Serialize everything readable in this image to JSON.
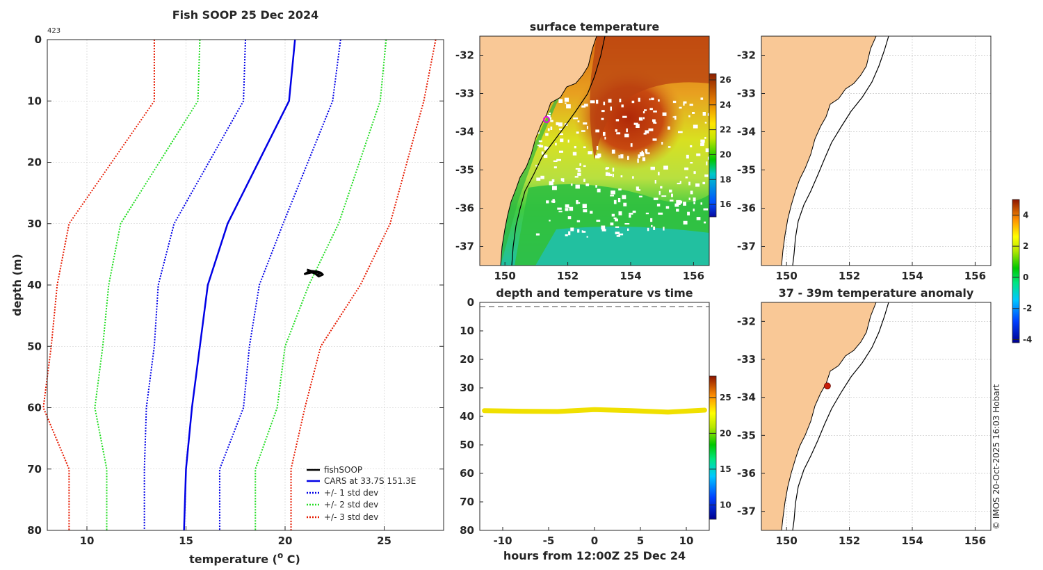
{
  "colors": {
    "land": "#f9c896",
    "cars": "#0000e6",
    "std1": "#0000e6",
    "std2": "#22dd22",
    "std3": "#e61a00",
    "fishsoop": "#000000",
    "marker": "#c81e0a",
    "grid": "#c8c8c8"
  },
  "profile": {
    "title": "Fish SOOP 25 Dec 2024",
    "id_label": "423",
    "xlabel": "temperature (",
    "xlabel_sup": "o",
    "xlabel_end": " C)",
    "ylabel": "depth (m)",
    "legend": {
      "fishsoop": "fishSOOP",
      "cars": "CARS at 33.7S 151.3E",
      "std1": "+/- 1 std dev",
      "std2": "+/- 2 std dev",
      "std3": "+/- 3 std dev"
    }
  },
  "sst": {
    "title": "surface temperature"
  },
  "timeplot": {
    "title": "depth and temperature vs time",
    "xlabel": "hours from 12:00Z 25 Dec 24"
  },
  "anomaly": {
    "title": "37 - 39m temperature anomaly"
  },
  "credit": "© IMOS 20-Oct-2025 16:03 Hobart",
  "chart_data": [
    {
      "type": "line",
      "name": "temperature profile",
      "title": "Fish SOOP 25 Dec 2024",
      "xlabel": "temperature (o C)",
      "ylabel": "depth (m)",
      "xlim": [
        8,
        28
      ],
      "ylim": [
        80,
        0
      ],
      "xticks": [
        10,
        15,
        20,
        25
      ],
      "yticks": [
        0,
        10,
        20,
        30,
        40,
        50,
        60,
        70,
        80
      ],
      "depths": [
        0,
        10,
        30,
        40,
        50,
        60,
        70,
        80
      ],
      "series": [
        {
          "name": "CARS at 33.7S 151.3E",
          "style": "solid",
          "temps": [
            20.5,
            20.2,
            17.1,
            16.1,
            15.7,
            15.3,
            15.0,
            14.9
          ]
        },
        {
          "name": "+1 std dev",
          "style": "dotted",
          "temps": [
            22.8,
            22.4,
            19.9,
            18.7,
            18.2,
            17.9,
            16.7,
            16.7
          ]
        },
        {
          "name": "-1 std dev",
          "style": "dotted",
          "temps": [
            18.0,
            17.9,
            14.4,
            13.6,
            13.4,
            13.0,
            12.9,
            12.9
          ]
        },
        {
          "name": "+2 std dev",
          "style": "dotted",
          "temps": [
            25.1,
            24.8,
            22.7,
            21.2,
            20.0,
            19.6,
            18.5,
            18.5
          ]
        },
        {
          "name": "-2 std dev",
          "style": "dotted",
          "temps": [
            15.7,
            15.6,
            11.7,
            11.1,
            10.8,
            10.4,
            11.0,
            11.0
          ]
        },
        {
          "name": "+3 std dev",
          "style": "dotted",
          "temps": [
            27.6,
            27.0,
            25.3,
            23.8,
            21.8,
            21.0,
            20.3,
            20.3
          ]
        },
        {
          "name": "-3 std dev",
          "style": "dotted",
          "temps": [
            13.4,
            13.4,
            9.1,
            8.5,
            8.2,
            7.8,
            9.1,
            9.1
          ]
        }
      ],
      "fishsoop": {
        "name": "fishSOOP",
        "temps": [
          21.1,
          21.3,
          21.6,
          21.8,
          21.9,
          21.7,
          21.5,
          21.2,
          21.0,
          21.4,
          21.8,
          21.6
        ],
        "depths": [
          37.5,
          37.7,
          37.8,
          38.0,
          38.3,
          38.6,
          38.1,
          37.8,
          38.2,
          37.9,
          38.0,
          38.4
        ]
      }
    },
    {
      "type": "heatmap",
      "name": "surface temperature map",
      "title": "surface temperature",
      "xlim": [
        149.2,
        156.5
      ],
      "ylim": [
        -37.5,
        -31.5
      ],
      "xticks": [
        150,
        152,
        154,
        156
      ],
      "yticks": [
        -32,
        -33,
        -34,
        -35,
        -36,
        -37
      ],
      "colorbar": {
        "range": [
          15,
          26.5
        ],
        "ticks": [
          16,
          18,
          20,
          22,
          24,
          26
        ]
      },
      "marker": {
        "lon": 151.3,
        "lat": -33.7
      }
    },
    {
      "type": "scatter",
      "name": "depth and temperature vs time",
      "title": "depth and temperature vs time",
      "xlabel": "hours from 12:00Z 25 Dec 24",
      "xlim": [
        -12.5,
        12.5
      ],
      "ylim": [
        80,
        0
      ],
      "xticks": [
        -10,
        -5,
        0,
        5,
        10
      ],
      "yticks": [
        0,
        10,
        20,
        30,
        40,
        50,
        60,
        70,
        80
      ],
      "reference_depth": 1.5,
      "hours": [
        -12,
        -8,
        -4,
        0,
        4,
        8,
        12
      ],
      "depths": [
        38.0,
        38.2,
        38.3,
        37.6,
        38.0,
        38.5,
        37.8
      ],
      "temperature": 23.5,
      "colorbar": {
        "range": [
          8,
          28
        ],
        "ticks": [
          10,
          15,
          20,
          25
        ]
      }
    },
    {
      "type": "line",
      "name": "map panel top right",
      "xlim": [
        149.2,
        156.5
      ],
      "ylim": [
        -37.5,
        -31.5
      ],
      "xticks": [
        150,
        152,
        154,
        156
      ],
      "yticks": [
        -32,
        -33,
        -34,
        -35,
        -36,
        -37
      ]
    },
    {
      "type": "scatter",
      "name": "temperature anomaly map",
      "title": "37 - 39m temperature anomaly",
      "xlim": [
        149.2,
        156.5
      ],
      "ylim": [
        -37.5,
        -31.5
      ],
      "xticks": [
        150,
        152,
        154,
        156
      ],
      "yticks": [
        -32,
        -33,
        -34,
        -35,
        -36,
        -37
      ],
      "point": {
        "lon": 151.3,
        "lat": -33.7,
        "anomaly": 4.5
      },
      "colorbar": {
        "range": [
          -4.2,
          5
        ],
        "ticks": [
          -4,
          -2,
          0,
          2,
          4
        ]
      }
    }
  ]
}
